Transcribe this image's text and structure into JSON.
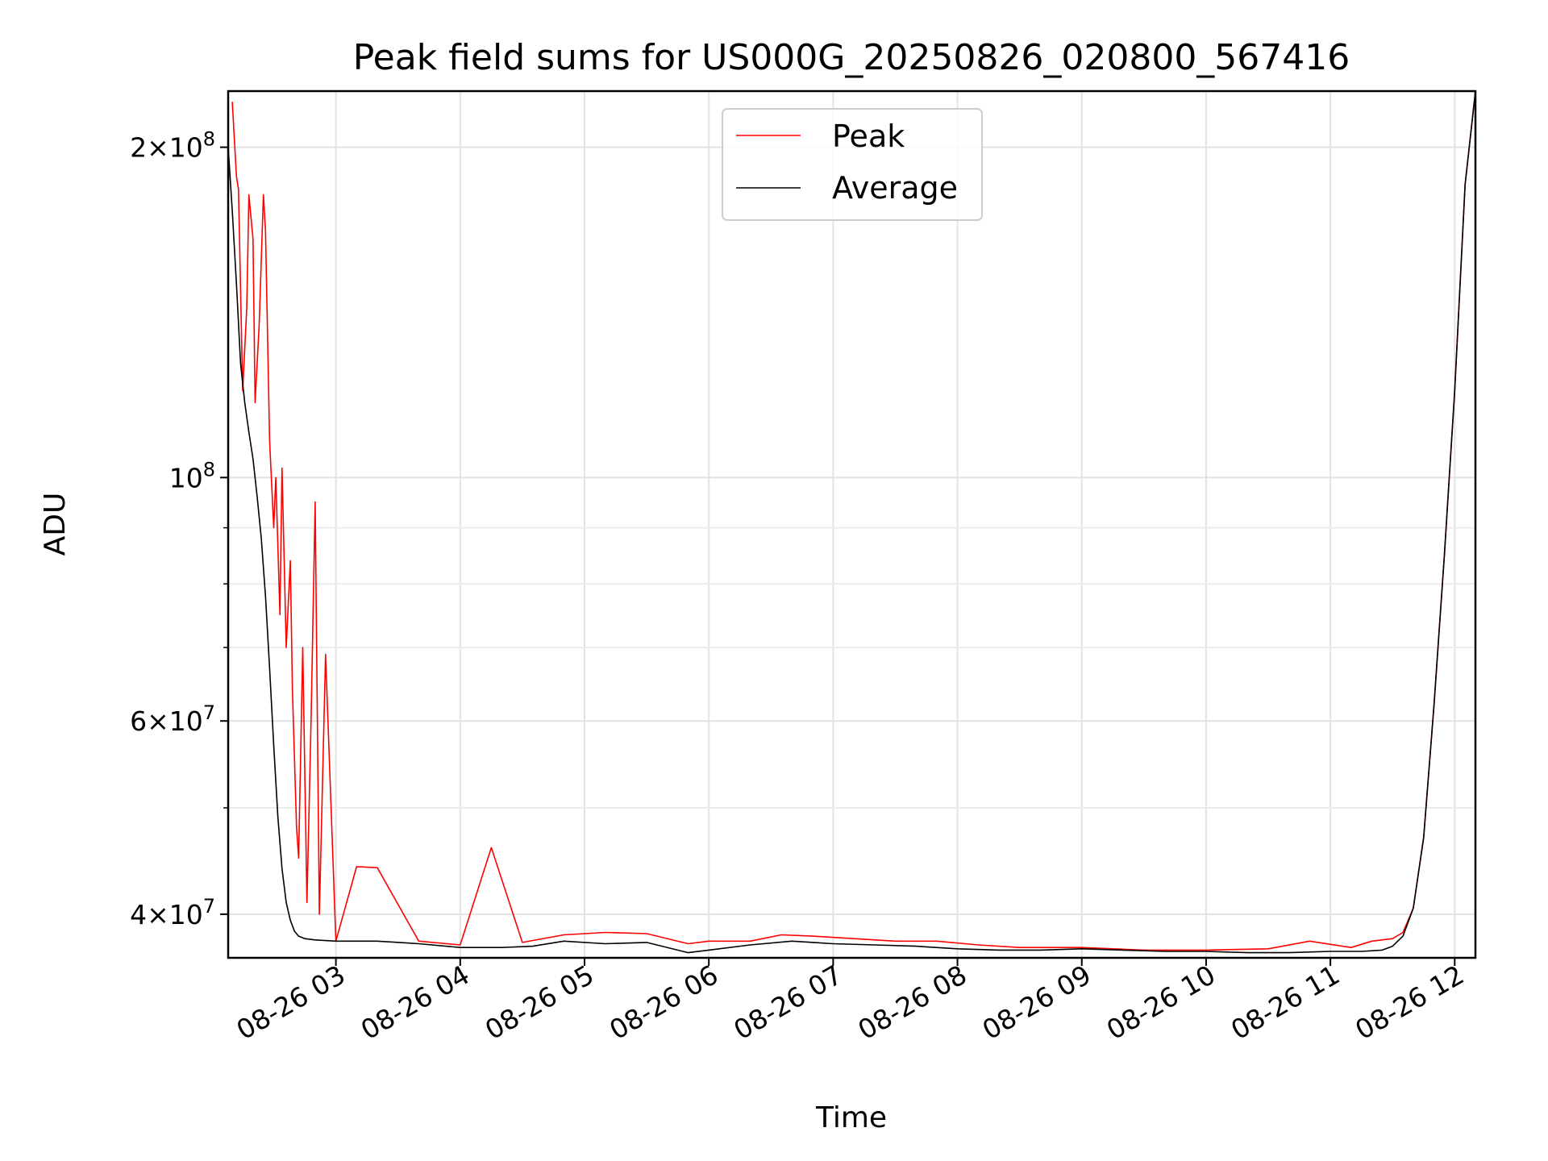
{
  "chart_data": {
    "type": "line",
    "title": "Peak field sums for US000G_20250826_020800_567416",
    "xlabel": "Time",
    "ylabel": "ADU",
    "y_scale": "log",
    "grid": true,
    "legend_position": "top-center",
    "x_start": "2025-08-26 02:08",
    "x_end": "2025-08-26 12:10",
    "xlim": [
      "2025-08-26 02:08",
      "2025-08-26 12:10"
    ],
    "ylim": [
      36500000,
      225000000
    ],
    "x_ticks": [
      "08-26 03",
      "08-26 04",
      "08-26 05",
      "08-26 06",
      "08-26 07",
      "08-26 08",
      "08-26 09",
      "08-26 10",
      "08-26 11",
      "08-26 12"
    ],
    "y_ticks_major": [
      {
        "value": 100000000,
        "base": "10",
        "exp": "8",
        "mant": ""
      },
      {
        "value": 200000000,
        "base": "10",
        "exp": "8",
        "mant": "2"
      },
      {
        "value": 40000000,
        "base": "10",
        "exp": "7",
        "mant": "4"
      },
      {
        "value": 60000000,
        "base": "10",
        "exp": "7",
        "mant": "6"
      }
    ],
    "y_ticks_minor": [
      50000000,
      70000000,
      80000000,
      90000000
    ],
    "series": [
      {
        "name": "Peak",
        "color": "#ff0000",
        "x": [
          "02:10",
          "02:12",
          "02:13",
          "02:15",
          "02:17",
          "02:18",
          "02:20",
          "02:21",
          "02:23",
          "02:25",
          "02:26",
          "02:28",
          "02:30",
          "02:31",
          "02:33",
          "02:34",
          "02:36",
          "02:38",
          "02:39",
          "02:41",
          "02:42",
          "02:44",
          "02:46",
          "02:48",
          "02:50",
          "02:52",
          "02:55",
          "03:00",
          "03:10",
          "03:20",
          "03:40",
          "04:00",
          "04:15",
          "04:30",
          "04:50",
          "05:10",
          "05:30",
          "05:50",
          "06:00",
          "06:20",
          "06:35",
          "06:50",
          "07:10",
          "07:30",
          "07:50",
          "08:10",
          "08:30",
          "09:00",
          "09:30",
          "10:00",
          "10:30",
          "10:50",
          "11:10",
          "11:20",
          "11:30",
          "11:35",
          "11:40",
          "11:45",
          "11:50",
          "11:55",
          "12:00",
          "12:05",
          "12:10"
        ],
        "values": [
          220000000,
          188000000,
          183000000,
          120000000,
          143000000,
          181000000,
          165000000,
          117000000,
          138000000,
          181000000,
          168000000,
          108000000,
          90000000,
          100000000,
          75000000,
          102000000,
          70000000,
          84000000,
          64000000,
          48000000,
          45000000,
          70000000,
          41000000,
          60000000,
          95000000,
          40000000,
          69000000,
          37800000,
          44200000,
          44100000,
          37800000,
          37500000,
          46000000,
          37700000,
          38300000,
          38500000,
          38400000,
          37600000,
          37800000,
          37800000,
          38300000,
          38200000,
          38000000,
          37800000,
          37800000,
          37500000,
          37300000,
          37300000,
          37100000,
          37100000,
          37200000,
          37800000,
          37300000,
          37800000,
          38000000,
          38500000,
          40500000,
          47000000,
          62000000,
          85000000,
          120000000,
          185000000,
          225000000
        ]
      },
      {
        "name": "Average",
        "color": "#000000",
        "x": [
          "02:08",
          "02:10",
          "02:12",
          "02:14",
          "02:16",
          "02:18",
          "02:20",
          "02:22",
          "02:24",
          "02:26",
          "02:28",
          "02:30",
          "02:32",
          "02:34",
          "02:36",
          "02:38",
          "02:40",
          "02:42",
          "02:45",
          "02:50",
          "03:00",
          "03:20",
          "03:40",
          "04:00",
          "04:20",
          "04:35",
          "04:50",
          "05:10",
          "05:30",
          "05:50",
          "06:00",
          "06:20",
          "06:40",
          "07:00",
          "07:20",
          "07:40",
          "08:00",
          "08:20",
          "08:40",
          "09:00",
          "09:20",
          "09:40",
          "10:00",
          "10:20",
          "10:40",
          "11:00",
          "11:15",
          "11:25",
          "11:30",
          "11:35",
          "11:40",
          "11:45",
          "11:50",
          "11:55",
          "12:00",
          "12:05",
          "12:10"
        ],
        "values": [
          200000000,
          175000000,
          150000000,
          127000000,
          117000000,
          110000000,
          104000000,
          96000000,
          88000000,
          78000000,
          67000000,
          57000000,
          49000000,
          44000000,
          41000000,
          39500000,
          38600000,
          38200000,
          38000000,
          37900000,
          37800000,
          37800000,
          37600000,
          37300000,
          37300000,
          37400000,
          37800000,
          37600000,
          37700000,
          36900000,
          37100000,
          37500000,
          37800000,
          37600000,
          37500000,
          37400000,
          37200000,
          37100000,
          37100000,
          37200000,
          37100000,
          37000000,
          37000000,
          36900000,
          36900000,
          37000000,
          37000000,
          37100000,
          37400000,
          38200000,
          40500000,
          47000000,
          62000000,
          85000000,
          120000000,
          185000000,
          225000000
        ]
      }
    ]
  }
}
